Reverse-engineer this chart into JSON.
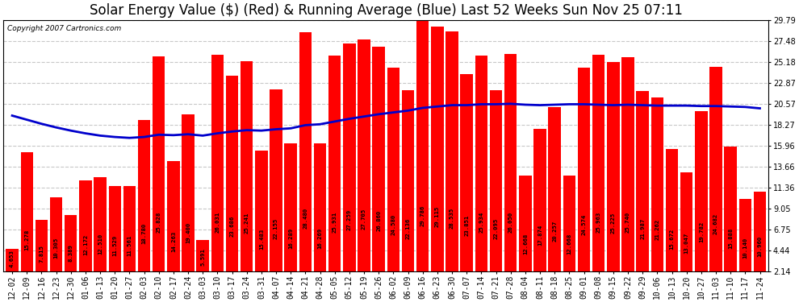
{
  "title": "Solar Energy Value ($) (Red) & Running Average (Blue) Last 52 Weeks Sun Nov 25 07:11",
  "copyright": "Copyright 2007 Cartronics.com",
  "bar_color": "#ff0000",
  "avg_line_color": "#0000cc",
  "background_color": "#ffffff",
  "plot_bg_color": "#ffffff",
  "grid_color": "#c8c8c8",
  "categories": [
    "12-02",
    "12-09",
    "12-16",
    "12-23",
    "12-30",
    "01-06",
    "01-13",
    "01-20",
    "01-27",
    "02-03",
    "02-10",
    "02-17",
    "02-24",
    "03-03",
    "03-10",
    "03-17",
    "03-24",
    "03-31",
    "04-07",
    "04-14",
    "04-21",
    "04-28",
    "05-05",
    "05-12",
    "05-19",
    "05-26",
    "06-02",
    "06-09",
    "06-16",
    "06-23",
    "06-30",
    "07-07",
    "07-14",
    "07-21",
    "07-28",
    "08-04",
    "08-11",
    "08-18",
    "08-25",
    "09-01",
    "09-08",
    "09-15",
    "09-22",
    "09-29",
    "10-06",
    "10-13",
    "10-20",
    "10-27",
    "11-03",
    "11-10",
    "11-17",
    "11-24"
  ],
  "values": [
    4.653,
    15.278,
    7.815,
    10.305,
    8.389,
    12.172,
    12.51,
    11.529,
    11.561,
    18.78,
    25.828,
    14.263,
    19.4,
    5.591,
    26.031,
    23.686,
    25.241,
    15.483,
    22.155,
    16.289,
    28.48,
    16.269,
    25.931,
    27.259,
    27.705,
    26.86,
    24.58,
    22.136,
    29.786,
    29.115,
    28.535,
    23.851,
    25.934,
    22.095,
    26.05,
    12.668,
    17.874,
    20.257,
    12.668,
    24.574,
    25.963,
    25.225,
    25.74,
    21.987,
    21.262,
    15.672,
    13.047,
    19.782,
    24.682,
    15.888,
    10.14,
    10.96
  ],
  "running_avg": [
    19.3,
    18.85,
    18.4,
    18.0,
    17.65,
    17.35,
    17.1,
    16.95,
    16.85,
    16.95,
    17.2,
    17.15,
    17.25,
    17.1,
    17.35,
    17.55,
    17.7,
    17.65,
    17.8,
    17.9,
    18.25,
    18.35,
    18.65,
    18.95,
    19.2,
    19.45,
    19.65,
    19.85,
    20.15,
    20.3,
    20.45,
    20.45,
    20.55,
    20.55,
    20.6,
    20.5,
    20.45,
    20.5,
    20.55,
    20.55,
    20.5,
    20.45,
    20.5,
    20.45,
    20.4,
    20.4,
    20.4,
    20.35,
    20.35,
    20.3,
    20.25,
    20.1
  ],
  "yticks": [
    2.14,
    4.44,
    6.75,
    9.05,
    11.36,
    13.66,
    15.96,
    18.27,
    20.57,
    22.87,
    25.18,
    27.48,
    29.79
  ],
  "ymin": 2.14,
  "ymax": 29.79,
  "title_fontsize": 12,
  "tick_fontsize": 7,
  "bar_text_fontsize": 5.2
}
